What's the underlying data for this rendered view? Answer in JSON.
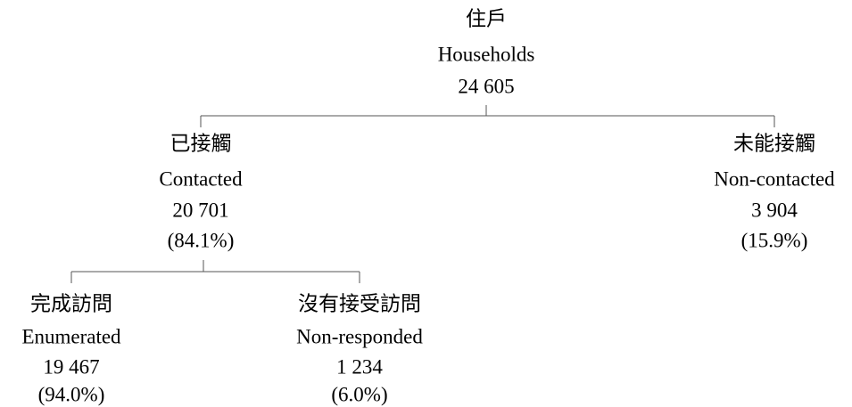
{
  "nodes": [
    {
      "zh": "住戶",
      "en": "Households",
      "count": "24 605"
    },
    {
      "zh": "已接觸",
      "en": "Contacted",
      "count": "20 701",
      "pct": "(84.1%)"
    },
    {
      "zh": "未能接觸",
      "en": "Non-contacted",
      "count": "3 904",
      "pct": "(15.9%)"
    },
    {
      "zh": "完成訪問",
      "en": "Enumerated",
      "count": "19 467",
      "pct": "(94.0%)"
    },
    {
      "zh": "沒有接受訪問",
      "en": "Non-responded",
      "count": "1 234",
      "pct": "(6.0%)"
    }
  ]
}
